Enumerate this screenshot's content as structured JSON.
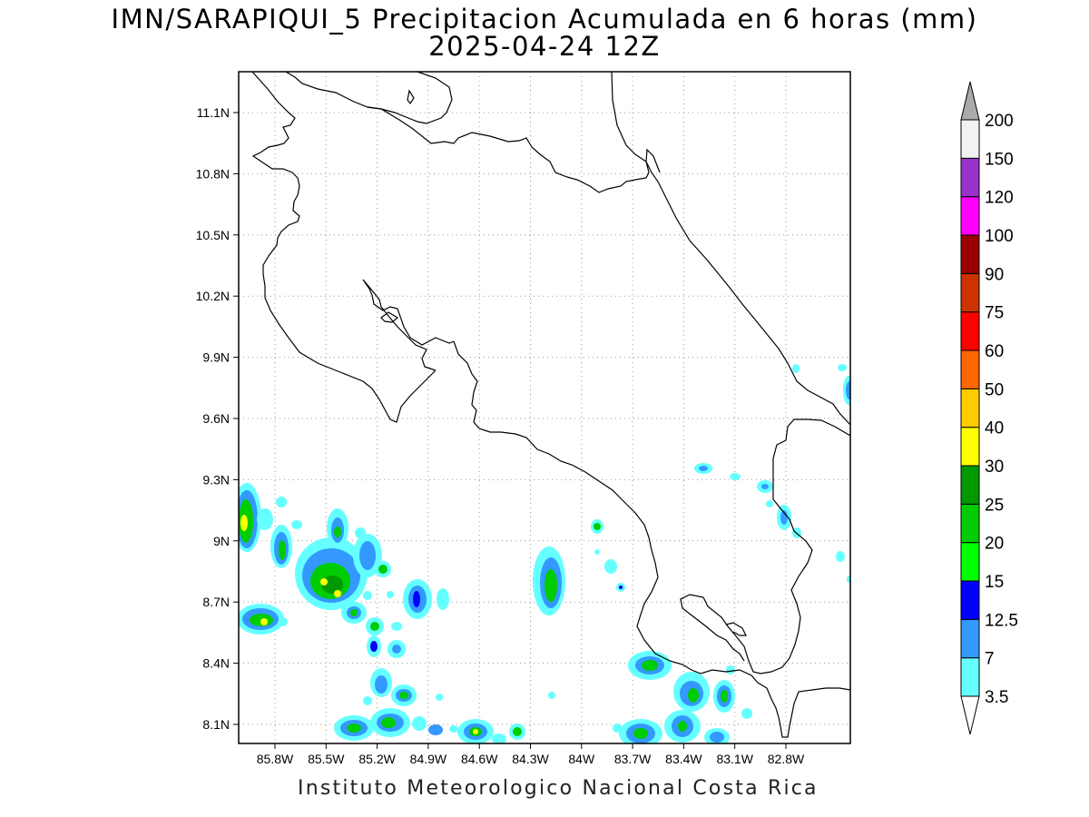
{
  "title_line1": "IMN/SARAPIQUI_5 Precipitacion Acumulada en 6 horas (mm)",
  "title_line2": "2025-04-24 12Z",
  "footer": "Instituto Meteorologico Nacional Costa Rica",
  "map": {
    "lon_range": [
      -86.0,
      -83.0
    ],
    "lat_range": [
      8.0,
      11.2
    ],
    "grid_lines": true,
    "lat_labels": [
      "11.1N",
      "10.8N",
      "10.5N",
      "10.2N",
      "9.9N",
      "9.6N",
      "9.3N",
      "9N",
      "8.7N",
      "8.4N",
      "8.1N"
    ],
    "lon_labels": [
      "85.8W",
      "85.5W",
      "85.2W",
      "84.9W",
      "84.6W",
      "84.3W",
      "84W",
      "83.7W",
      "83.4W",
      "83.1W",
      "82.8W"
    ]
  },
  "colorbar": {
    "labels": [
      "3.5",
      "7",
      "12.5",
      "15",
      "20",
      "25",
      "30",
      "40",
      "50",
      "60",
      "75",
      "90",
      "100",
      "120",
      "150",
      "200"
    ],
    "colors": [
      "#66ffff",
      "#3399ff",
      "#0000ff",
      "#00ff00",
      "#00cc00",
      "#009900",
      "#ffff00",
      "#ffcc00",
      "#ff6600",
      "#ff0000",
      "#cc3300",
      "#990000",
      "#ff00ff",
      "#9933cc",
      "#f2f2f2",
      "#aaaaaa"
    ]
  }
}
